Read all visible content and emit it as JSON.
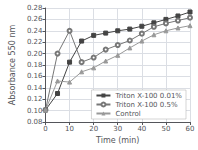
{
  "chart_data": {
    "type": "line",
    "xlabel": "Time (min)",
    "ylabel": "Absorbance 550 nm",
    "x": [
      0,
      5,
      10,
      15,
      20,
      25,
      30,
      35,
      40,
      45,
      50,
      55,
      60
    ],
    "series": [
      {
        "name": "Triton X-100 0.01%",
        "color": "#444444",
        "marker": "square",
        "values": [
          0.101,
          0.13,
          0.185,
          0.222,
          0.232,
          0.236,
          0.24,
          0.243,
          0.248,
          0.254,
          0.26,
          0.266,
          0.273
        ]
      },
      {
        "name": "Triton X-100 0.5%",
        "color": "#777777",
        "marker": "open-circle",
        "values": [
          0.101,
          0.2,
          0.24,
          0.185,
          0.193,
          0.207,
          0.215,
          0.223,
          0.235,
          0.247,
          0.253,
          0.258,
          0.263
        ]
      },
      {
        "name": "Control",
        "color": "#999999",
        "marker": "triangle",
        "values": [
          0.101,
          0.152,
          0.15,
          0.168,
          0.175,
          0.187,
          0.197,
          0.21,
          0.222,
          0.233,
          0.24,
          0.245,
          0.249
        ]
      }
    ],
    "xlim": [
      0,
      60
    ],
    "xticks": [
      0,
      10,
      20,
      30,
      40,
      50,
      60
    ],
    "ylim": [
      0.08,
      0.28
    ],
    "yticks": [
      0.08,
      {
        "value": 0.1,
        "label": "0.10"
      },
      0.12,
      0.14,
      0.16,
      0.18,
      {
        "value": 0.2,
        "label": "0.20"
      },
      0.22,
      0.24,
      0.26,
      {
        "value": 0.28,
        "label": "0.28"
      }
    ],
    "grid": true,
    "legend": "lower right"
  }
}
